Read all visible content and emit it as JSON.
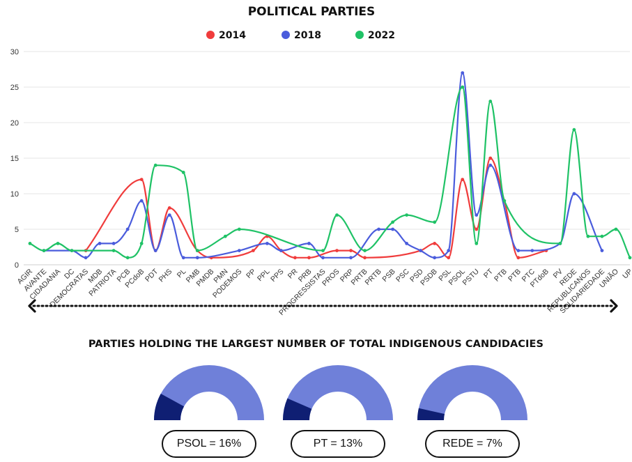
{
  "chart_data": [
    {
      "type": "line",
      "title": "POLITICAL PARTIES",
      "categories": [
        "AGIR",
        "AVANTE",
        "CIDADANIA",
        "DC",
        "DEMOCRATAS",
        "MDB",
        "PATRIOTA",
        "PCB",
        "PCdoB",
        "PDT",
        "PHS",
        "PL",
        "PMB",
        "PMDB",
        "PMN",
        "PODEMOS",
        "PP",
        "PPL",
        "PPS",
        "PR",
        "PRB",
        "PROGRESSISTAS",
        "PROS",
        "PRP",
        "PRTB",
        "PRTB",
        "PSB",
        "PSC",
        "PSD",
        "PSDB",
        "PSL",
        "PSOL",
        "PSTU",
        "PT",
        "PTB",
        "PTB",
        "PTC",
        "PTdoB",
        "PV",
        "REDE",
        "REPUBLICANOS",
        "SOLIDARIEDADE",
        "UNIÃO",
        "UP"
      ],
      "series": [
        {
          "name": "2014",
          "color": "#f03c3c",
          "values": [
            null,
            null,
            null,
            null,
            2,
            null,
            null,
            null,
            12,
            2,
            8,
            null,
            2,
            1,
            null,
            null,
            2,
            4,
            2,
            1,
            1,
            null,
            2,
            2,
            1,
            null,
            null,
            null,
            2,
            3,
            1,
            12,
            5,
            15,
            9,
            1,
            null,
            2,
            null,
            null,
            null,
            null,
            null,
            null
          ]
        },
        {
          "name": "2018",
          "color": "#4a5cdc",
          "values": [
            null,
            2,
            null,
            2,
            1,
            3,
            3,
            5,
            9,
            2,
            7,
            1,
            1,
            null,
            null,
            2,
            null,
            3,
            2,
            null,
            3,
            1,
            null,
            1,
            null,
            5,
            5,
            3,
            2,
            1,
            2,
            27,
            7,
            14,
            null,
            2,
            2,
            null,
            3,
            10,
            null,
            2,
            null,
            null
          ]
        },
        {
          "name": "2022",
          "color": "#1fc266",
          "values": [
            3,
            2,
            3,
            2,
            null,
            null,
            2,
            1,
            3,
            14,
            null,
            13,
            2,
            null,
            4,
            5,
            null,
            null,
            null,
            null,
            null,
            2,
            7,
            null,
            2,
            null,
            6,
            7,
            null,
            6,
            null,
            25,
            3,
            23,
            9,
            null,
            null,
            null,
            3,
            19,
            4,
            4,
            5,
            1
          ]
        }
      ],
      "ylim": [
        0,
        30
      ],
      "yticks": [
        0,
        5,
        10,
        15,
        20,
        25,
        30
      ],
      "grid": true,
      "legend": "top-center"
    },
    {
      "type": "gauge",
      "title": "PARTIES HOLDING THE LARGEST NUMBER OF TOTAL INDIGENOUS CANDIDACIES",
      "items": [
        {
          "label": "PSOL = 16%",
          "value": 16
        },
        {
          "label": "PT = 13%",
          "value": 13
        },
        {
          "label": "REDE = 7%",
          "value": 7
        }
      ],
      "track_color": "#6f80d9",
      "fill_color": "#0f1f73"
    }
  ],
  "arrow_color": "#111111"
}
